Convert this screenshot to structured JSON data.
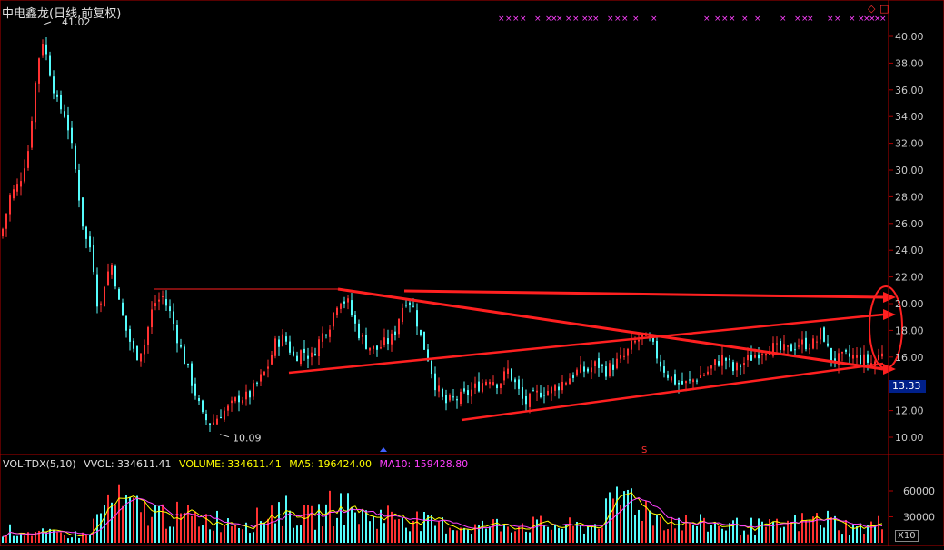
{
  "header": {
    "title": "中电鑫龙(日线,前复权)",
    "corner_icons": [
      "diamond-icon",
      "square-icon"
    ]
  },
  "price_panel": {
    "current_price": "13.33",
    "high_label": "41.02",
    "low_label": "10.09",
    "marker_s": "S"
  },
  "volume_panel": {
    "indicator": "VOL-TDX(5,10)",
    "vvol_label": "VVOL: 334611.41",
    "volume_label": "VOLUME: 334611.41",
    "ma5_label": "MA5: 196424.00",
    "ma10_label": "MA10: 159428.80",
    "scale_label": "X10"
  },
  "colors": {
    "up": "#ff3232",
    "down": "#54fcfc",
    "ma5": "#ffff00",
    "ma10": "#ff40ff",
    "trendline": "#ff2020",
    "grid_text": "#cccccc",
    "axis": "#b00000"
  },
  "chart_data": [
    {
      "type": "candlestick",
      "title": "中电鑫龙(日线,前复权)",
      "ylim": [
        9.0,
        42.0
      ],
      "y_ticks": [
        10,
        12,
        14,
        16,
        18,
        20,
        22,
        24,
        26,
        28,
        30,
        32,
        34,
        36,
        38,
        40
      ],
      "y_tick_labels": [
        "10.00",
        "12.00",
        "14.00",
        "16.00",
        "18.00",
        "20.00",
        "22.00",
        "24.00",
        "26.00",
        "28.00",
        "30.00",
        "32.00",
        "34.00",
        "36.00",
        "38.00",
        "40.00"
      ],
      "close_path": [
        [
          0,
          25.0
        ],
        [
          10,
          28.0
        ],
        [
          20,
          29.0
        ],
        [
          30,
          31.5
        ],
        [
          38,
          36.5
        ],
        [
          45,
          40.0
        ],
        [
          52,
          38.0
        ],
        [
          62,
          35.0
        ],
        [
          72,
          34.0
        ],
        [
          82,
          30.0
        ],
        [
          92,
          25.0
        ],
        [
          100,
          24.0
        ],
        [
          108,
          19.0
        ],
        [
          115,
          22.0
        ],
        [
          123,
          23.0
        ],
        [
          130,
          20.0
        ],
        [
          138,
          18.0
        ],
        [
          148,
          16.0
        ],
        [
          158,
          17.0
        ],
        [
          168,
          20.0
        ],
        [
          178,
          20.5
        ],
        [
          188,
          19.0
        ],
        [
          196,
          17.0
        ],
        [
          206,
          15.0
        ],
        [
          213,
          13.5
        ],
        [
          222,
          11.5
        ],
        [
          232,
          11.0
        ],
        [
          242,
          11.8
        ],
        [
          252,
          12.2
        ],
        [
          262,
          13.0
        ],
        [
          272,
          13.0
        ],
        [
          282,
          14.0
        ],
        [
          292,
          15.0
        ],
        [
          302,
          17.0
        ],
        [
          312,
          17.5
        ],
        [
          322,
          16.0
        ],
        [
          332,
          16.5
        ],
        [
          342,
          16.0
        ],
        [
          352,
          17.5
        ],
        [
          362,
          18.5
        ],
        [
          372,
          20.5
        ],
        [
          382,
          20.0
        ],
        [
          392,
          18.0
        ],
        [
          402,
          17.0
        ],
        [
          412,
          16.5
        ],
        [
          422,
          17.0
        ],
        [
          432,
          17.5
        ],
        [
          440,
          19.5
        ],
        [
          447,
          20.5
        ],
        [
          455,
          19.5
        ],
        [
          462,
          17.5
        ],
        [
          470,
          16.0
        ],
        [
          478,
          14.0
        ],
        [
          488,
          12.5
        ],
        [
          498,
          12.8
        ],
        [
          508,
          13.0
        ],
        [
          518,
          13.5
        ],
        [
          528,
          14.0
        ],
        [
          538,
          14.5
        ],
        [
          548,
          14.0
        ],
        [
          558,
          15.0
        ],
        [
          566,
          14.0
        ],
        [
          576,
          12.5
        ],
        [
          586,
          13.0
        ],
        [
          596,
          13.5
        ],
        [
          606,
          13.5
        ],
        [
          616,
          14.0
        ],
        [
          626,
          14.5
        ],
        [
          636,
          15.0
        ],
        [
          646,
          15.0
        ],
        [
          656,
          15.5
        ],
        [
          666,
          15.0
        ],
        [
          676,
          15.5
        ],
        [
          686,
          16.0
        ],
        [
          696,
          17.0
        ],
        [
          706,
          17.5
        ],
        [
          716,
          17.0
        ],
        [
          726,
          15.5
        ],
        [
          736,
          14.5
        ],
        [
          746,
          14.0
        ],
        [
          756,
          14.0
        ],
        [
          766,
          14.5
        ],
        [
          776,
          14.8
        ],
        [
          786,
          15.5
        ],
        [
          796,
          16.0
        ],
        [
          806,
          15.0
        ],
        [
          816,
          15.5
        ],
        [
          826,
          16.0
        ],
        [
          836,
          16.5
        ],
        [
          846,
          16.8
        ],
        [
          856,
          16.5
        ],
        [
          866,
          16.5
        ],
        [
          876,
          17.0
        ],
        [
          886,
          17.0
        ],
        [
          896,
          17.0
        ],
        [
          904,
          18.0
        ],
        [
          912,
          16.0
        ],
        [
          920,
          15.8
        ],
        [
          930,
          16.0
        ],
        [
          940,
          16.0
        ],
        [
          950,
          15.8
        ],
        [
          960,
          15.5
        ],
        [
          970,
          16.5
        ]
      ],
      "annotations": [
        {
          "label": "41.02",
          "value": 41.02
        },
        {
          "label": "10.09",
          "value": 10.09
        }
      ]
    },
    {
      "type": "bar",
      "title": "VOL-TDX(5,10)",
      "ylim": [
        0,
        75000
      ],
      "y_ticks": [
        30000,
        60000
      ],
      "y_tick_labels": [
        "30000",
        "60000"
      ],
      "volume_path": [
        [
          0,
          15000
        ],
        [
          30,
          12000
        ],
        [
          60,
          10000
        ],
        [
          95,
          9000
        ],
        [
          110,
          35000
        ],
        [
          120,
          48000
        ],
        [
          150,
          38000
        ],
        [
          200,
          30000
        ],
        [
          240,
          26000
        ],
        [
          280,
          25000
        ],
        [
          300,
          40000
        ],
        [
          340,
          28000
        ],
        [
          372,
          45000
        ],
        [
          400,
          30000
        ],
        [
          440,
          32000
        ],
        [
          470,
          22000
        ],
        [
          520,
          18000
        ],
        [
          560,
          22000
        ],
        [
          600,
          20000
        ],
        [
          650,
          18000
        ],
        [
          690,
          58000
        ],
        [
          720,
          30000
        ],
        [
          760,
          22000
        ],
        [
          800,
          20000
        ],
        [
          850,
          18000
        ],
        [
          905,
          28000
        ],
        [
          940,
          16000
        ],
        [
          970,
          22000
        ]
      ]
    }
  ]
}
